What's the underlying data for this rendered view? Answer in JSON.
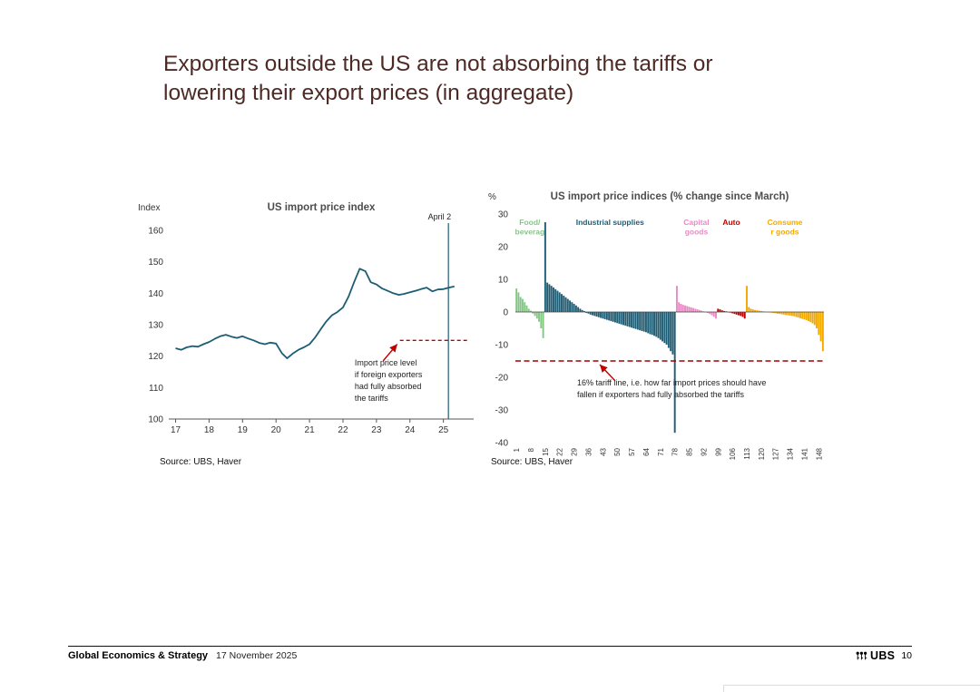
{
  "slide": {
    "title": "Exporters outside the US are not absorbing the tariffs or lowering their export prices (in aggregate)"
  },
  "footer": {
    "section": "Global Economics & Strategy",
    "date": "17 November 2025",
    "brand": "UBS",
    "page": "10"
  },
  "chart_data": [
    {
      "type": "line",
      "title": "US import price index",
      "ylabel": "Index",
      "ylim": [
        100,
        160
      ],
      "yticks": [
        100,
        110,
        120,
        130,
        140,
        150,
        160
      ],
      "xticks": [
        17,
        18,
        19,
        20,
        21,
        22,
        23,
        24,
        25
      ],
      "xlim": [
        16.85,
        25.85
      ],
      "line_color": "#1d5d73",
      "x": [
        17.0,
        17.17,
        17.33,
        17.5,
        17.67,
        17.83,
        18.0,
        18.17,
        18.33,
        18.5,
        18.67,
        18.83,
        19.0,
        19.17,
        19.33,
        19.5,
        19.67,
        19.83,
        20.0,
        20.17,
        20.33,
        20.5,
        20.67,
        20.83,
        21.0,
        21.17,
        21.33,
        21.5,
        21.67,
        21.83,
        22.0,
        22.17,
        22.33,
        22.5,
        22.67,
        22.83,
        23.0,
        23.17,
        23.33,
        23.5,
        23.67,
        23.83,
        24.0,
        24.17,
        24.33,
        24.5,
        24.67,
        24.83,
        25.0,
        25.17,
        25.33
      ],
      "y": [
        122.5,
        122.0,
        122.8,
        123.2,
        123.0,
        123.8,
        124.5,
        125.5,
        126.3,
        126.8,
        126.2,
        125.8,
        126.3,
        125.6,
        125.0,
        124.2,
        123.8,
        124.3,
        124.0,
        121.0,
        119.3,
        120.8,
        122.0,
        122.8,
        123.8,
        126.0,
        128.5,
        131.0,
        133.0,
        134.0,
        135.5,
        139.0,
        143.5,
        147.8,
        147.0,
        143.5,
        142.8,
        141.5,
        140.8,
        140.0,
        139.5,
        139.8,
        140.3,
        140.8,
        141.3,
        141.8,
        140.6,
        141.2,
        141.3,
        141.8,
        142.2
      ],
      "event_line": {
        "x": 25.15,
        "label": "April 2"
      },
      "absorbed_line": {
        "y": 125,
        "x_start": 23.7,
        "x_end": 25.75,
        "color": "#c00000"
      },
      "annotation_lines": [
        "Import price level",
        "if foreign exporters",
        "had fully absorbed",
        "the tariffs"
      ],
      "source": "Source: UBS, Haver"
    },
    {
      "type": "bar",
      "title": "US import price indices (% change since March)",
      "ylabel": "%",
      "ylim": [
        -40,
        30
      ],
      "yticks": [
        30,
        20,
        10,
        0,
        -10,
        -20,
        -30,
        -40
      ],
      "xticks": [
        1,
        8,
        15,
        22,
        29,
        36,
        43,
        50,
        57,
        64,
        71,
        78,
        85,
        92,
        99,
        106,
        113,
        120,
        127,
        134,
        141,
        148
      ],
      "series": [
        {
          "name": "Food/beverages",
          "label_lines": [
            "Food/",
            "beverag"
          ],
          "color": "#85c785",
          "values": [
            7.2,
            6.0,
            4.6,
            4.0,
            3.0,
            2.0,
            1.0,
            0.4,
            -0.5,
            -1.2,
            -2.0,
            -3.0,
            -5.0,
            -8.0
          ]
        },
        {
          "name": "Industrial supplies",
          "label_lines": [
            "Industrial supplies"
          ],
          "color": "#1f5d75",
          "values": [
            27.5,
            9.0,
            8.5,
            8.0,
            7.5,
            7.0,
            6.5,
            6.0,
            5.5,
            5.0,
            4.5,
            4.0,
            3.5,
            3.0,
            2.5,
            2.0,
            1.5,
            1.0,
            0.6,
            0.3,
            -0.3,
            -0.5,
            -0.8,
            -1.0,
            -1.2,
            -1.4,
            -1.6,
            -1.8,
            -2.0,
            -2.2,
            -2.4,
            -2.6,
            -2.8,
            -3.0,
            -3.2,
            -3.4,
            -3.6,
            -3.8,
            -4.0,
            -4.2,
            -4.4,
            -4.6,
            -4.8,
            -5.0,
            -5.2,
            -5.4,
            -5.6,
            -5.8,
            -6.0,
            -6.2,
            -6.5,
            -6.8,
            -7.0,
            -7.3,
            -7.6,
            -8.0,
            -8.5,
            -9.0,
            -9.5,
            -10.0,
            -11.0,
            -12.0,
            -13.0,
            -37.0
          ]
        },
        {
          "name": "Capital goods",
          "label_lines": [
            "Capital",
            "goods"
          ],
          "color": "#e88bc4",
          "values": [
            8.0,
            3.0,
            2.5,
            2.2,
            2.0,
            1.8,
            1.6,
            1.4,
            1.2,
            1.0,
            0.8,
            0.6,
            0.4,
            0.2,
            0.0,
            -0.3,
            -0.6,
            -1.0,
            -1.5,
            -2.0
          ]
        },
        {
          "name": "Auto",
          "label_lines": [
            "Auto"
          ],
          "color": "#c00000",
          "values": [
            1.0,
            0.8,
            0.5,
            0.3,
            0.2,
            0.0,
            -0.2,
            -0.4,
            -0.6,
            -0.8,
            -1.0,
            -1.2,
            -1.5,
            -2.0
          ]
        },
        {
          "name": "Consumer goods",
          "label_lines": [
            "Consume",
            "r goods"
          ],
          "color": "#f2a900",
          "values": [
            8.0,
            1.5,
            1.0,
            0.8,
            0.6,
            0.5,
            0.4,
            0.3,
            0.2,
            0.1,
            0.0,
            -0.1,
            -0.2,
            -0.3,
            -0.4,
            -0.5,
            -0.6,
            -0.7,
            -0.8,
            -0.9,
            -1.0,
            -1.1,
            -1.2,
            -1.3,
            -1.5,
            -1.7,
            -1.9,
            -2.1,
            -2.3,
            -2.5,
            -2.8,
            -3.1,
            -3.5,
            -4.0,
            -5.0,
            -7.0,
            -9.0,
            -12.0
          ]
        }
      ],
      "tariff_line": {
        "y": -15,
        "color": "#a00000"
      },
      "annotation_lines": [
        "16% tariff line, i.e. how far import prices should have",
        "fallen if exporters had fully absorbed the tariffs"
      ],
      "source": "Source: UBS, Haver"
    }
  ]
}
